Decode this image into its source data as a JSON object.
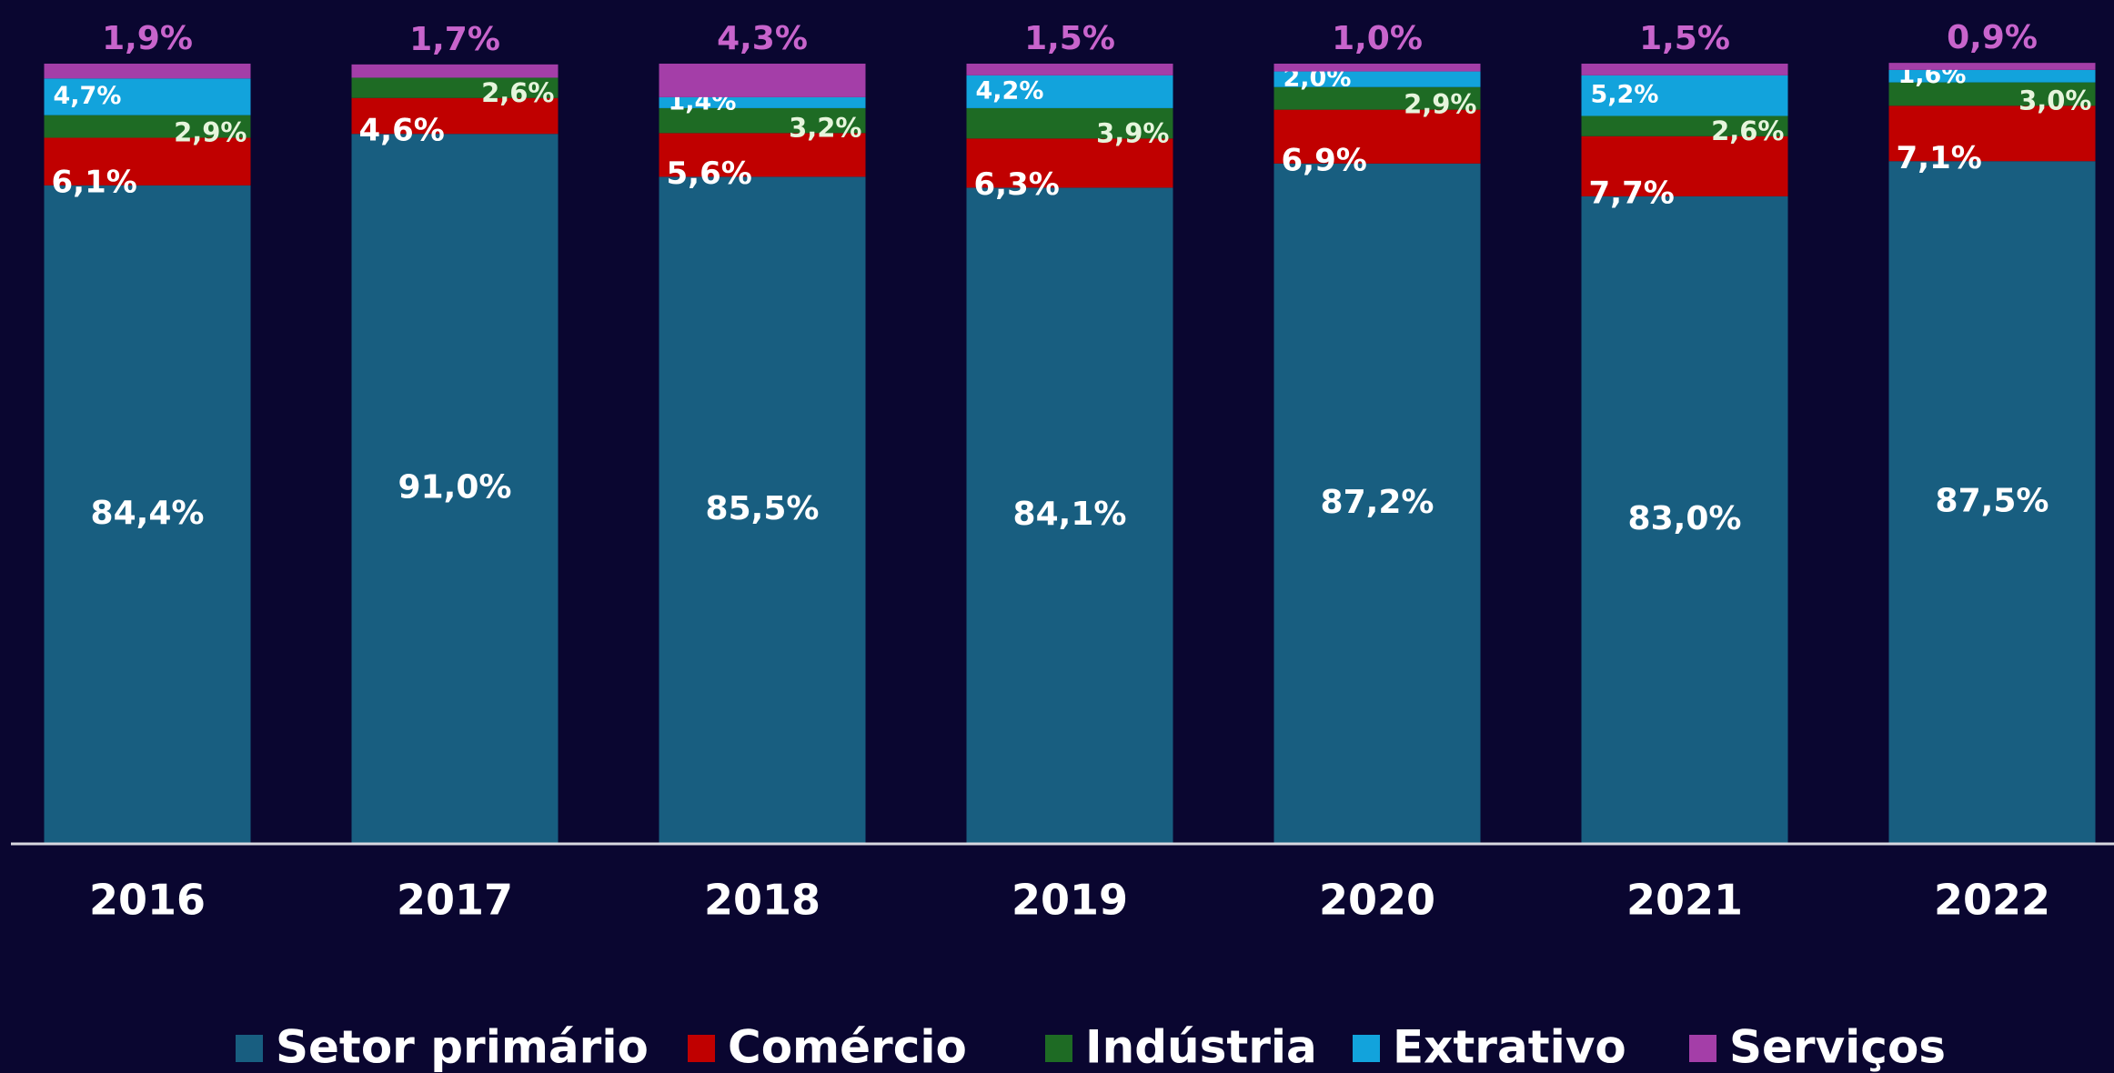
{
  "chart_data": {
    "type": "stacked_bar",
    "categories": [
      "2016",
      "2017",
      "2018",
      "2019",
      "2020",
      "2021",
      "2022"
    ],
    "ylim": [
      0,
      100
    ],
    "series": [
      {
        "name": "Setor primário",
        "color": "#185e80",
        "values": [
          84.4,
          91.0,
          85.5,
          84.1,
          87.2,
          83.0,
          87.5
        ],
        "value_labels": [
          "84,4%",
          "91,0%",
          "85,5%",
          "84,1%",
          "87,2%",
          "83,0%",
          "87,5%"
        ]
      },
      {
        "name": "Comércio",
        "color": "#c00000",
        "values": [
          6.1,
          4.6,
          5.6,
          6.3,
          6.9,
          7.7,
          7.1
        ],
        "value_labels": [
          "6,1%",
          "4,6%",
          "5,6%",
          "6,3%",
          "6,9%",
          "7,7%",
          "7,1%"
        ]
      },
      {
        "name": "Indústria",
        "color": "#1e6b24",
        "values": [
          2.9,
          2.6,
          3.2,
          3.9,
          2.9,
          2.6,
          3.0
        ],
        "value_labels": [
          "2,9%",
          "2,6%",
          "3,2%",
          "3,9%",
          "2,9%",
          "2,6%",
          "3,0%"
        ]
      },
      {
        "name": "Extrativo",
        "color": "#12a3dc",
        "values": [
          4.7,
          null,
          1.4,
          4.2,
          2.0,
          5.2,
          1.6
        ],
        "value_labels": [
          "4,7%",
          null,
          "1,4%",
          "4,2%",
          "2,0%",
          "5,2%",
          "1,6%"
        ]
      },
      {
        "name": "Serviços",
        "color": "#a43ea8",
        "values": [
          1.9,
          1.7,
          4.3,
          1.5,
          1.0,
          1.5,
          0.9
        ],
        "value_labels": [
          "1,9%",
          "1,7%",
          "4,3%",
          "1,5%",
          "1,0%",
          "1,5%",
          "0,9%"
        ]
      }
    ]
  }
}
